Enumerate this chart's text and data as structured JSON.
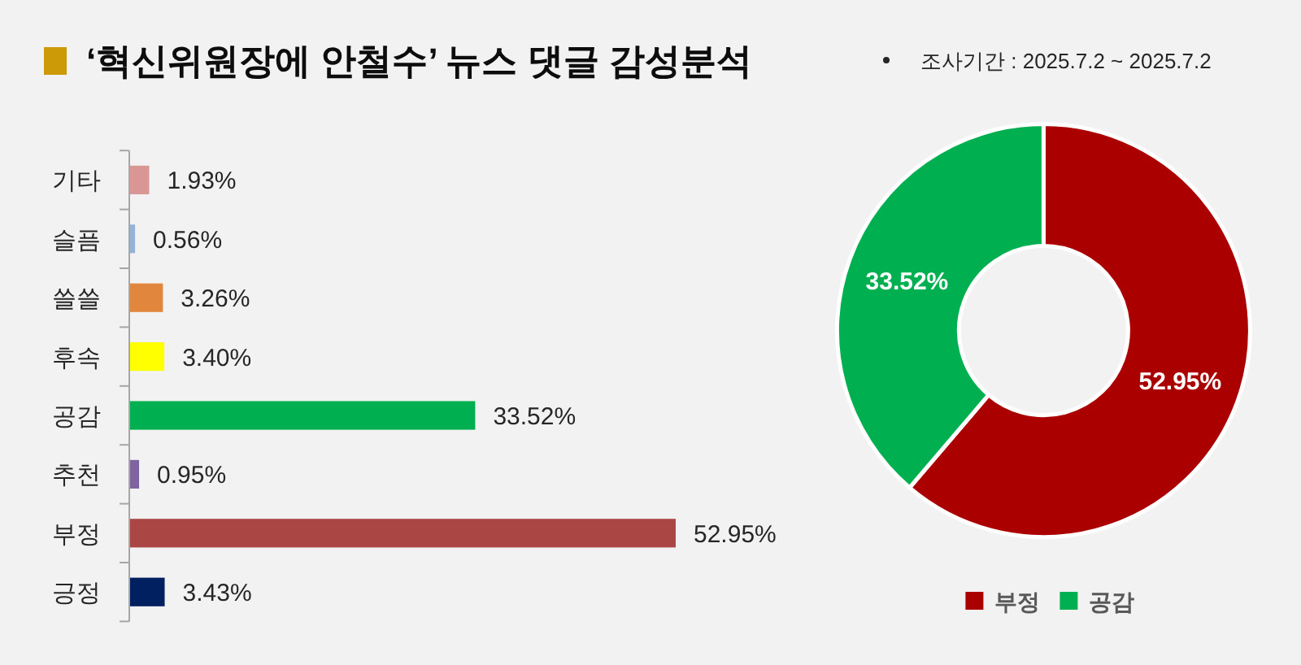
{
  "chart_data": [
    {
      "type": "bar",
      "orientation": "horizontal",
      "title": "‘혁신위원장에 안철수’ 뉴스 댓글 감성분석",
      "annotations": [
        "조사기간 : 2025.7.2 ~ 2025.7.2"
      ],
      "tick_labels": "y",
      "categories": [
        "기타",
        "슬픔",
        "쓸쓸",
        "후속",
        "공감",
        "추천",
        "부정",
        "긍정"
      ],
      "values": [
        1.93,
        0.56,
        3.26,
        3.4,
        33.52,
        0.95,
        52.95,
        3.43
      ],
      "colors": [
        "#d99694",
        "#95b3d7",
        "#e0863d",
        "#ffff00",
        "#00b050",
        "#8064a2",
        "#aa4644",
        "#002060"
      ],
      "value_labels": [
        "1.93%",
        "0.56%",
        "3.26%",
        "3.40%",
        "33.52%",
        "0.95%",
        "52.95%",
        "3.43%"
      ]
    },
    {
      "type": "donut",
      "categories": [
        "부정",
        "공감"
      ],
      "values": [
        52.95,
        33.52
      ],
      "colors": [
        "#aa0000",
        "#00b050"
      ],
      "value_labels": [
        "52.95%",
        "33.52%"
      ],
      "legend": "bottom"
    }
  ]
}
